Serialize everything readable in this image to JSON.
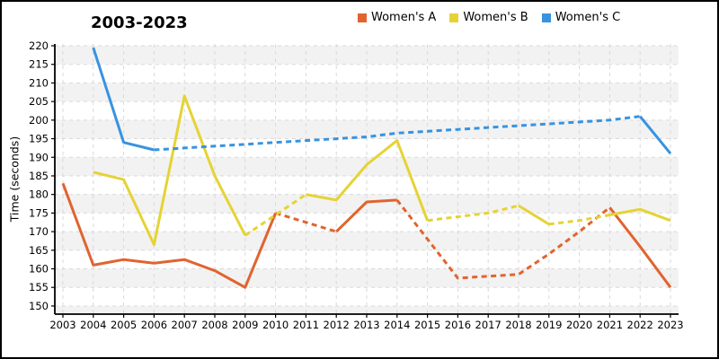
{
  "chart_data": {
    "type": "line",
    "title": "2003-2023",
    "ylabel": "Time (seconds)",
    "xlabel": "",
    "x": [
      2003,
      2004,
      2005,
      2006,
      2007,
      2008,
      2009,
      2010,
      2011,
      2012,
      2013,
      2014,
      2015,
      2016,
      2017,
      2018,
      2019,
      2020,
      2021,
      2022,
      2023
    ],
    "ylim": [
      150,
      220
    ],
    "ytick_step": 5,
    "grid": true,
    "legend_position": "top-center",
    "plot_bg_bands": [
      "#f2f2f2",
      "#ffffff"
    ],
    "series": [
      {
        "name": "Women's A",
        "color": "#e0642f",
        "values": [
          183,
          161,
          162.5,
          161.5,
          162.5,
          159.5,
          155,
          175,
          172.5,
          170,
          178,
          178.5,
          168,
          157.5,
          158,
          158.5,
          164,
          170,
          176.5,
          166,
          155
        ],
        "dashed_year_ranges": [
          [
            2010,
            2012
          ],
          [
            2014,
            2021
          ]
        ]
      },
      {
        "name": "Women's B",
        "color": "#e5d335",
        "values": [
          null,
          186,
          184,
          166.5,
          206.5,
          185,
          169,
          174.5,
          180,
          178.5,
          188,
          194.5,
          173,
          174,
          175,
          177,
          172,
          173,
          174.5,
          176,
          173
        ],
        "dashed_year_ranges": [
          [
            2009,
            2011
          ],
          [
            2015,
            2018
          ],
          [
            2019,
            2021
          ]
        ]
      },
      {
        "name": "Women's C",
        "color": "#3793e0",
        "values": [
          null,
          219.5,
          194,
          192,
          192.5,
          193,
          193.5,
          194,
          194.5,
          195,
          195.5,
          196.5,
          197,
          197.5,
          198,
          198.5,
          199,
          199.5,
          200,
          201,
          191
        ],
        "dashed_year_ranges": [
          [
            2006,
            2022
          ]
        ]
      }
    ]
  }
}
